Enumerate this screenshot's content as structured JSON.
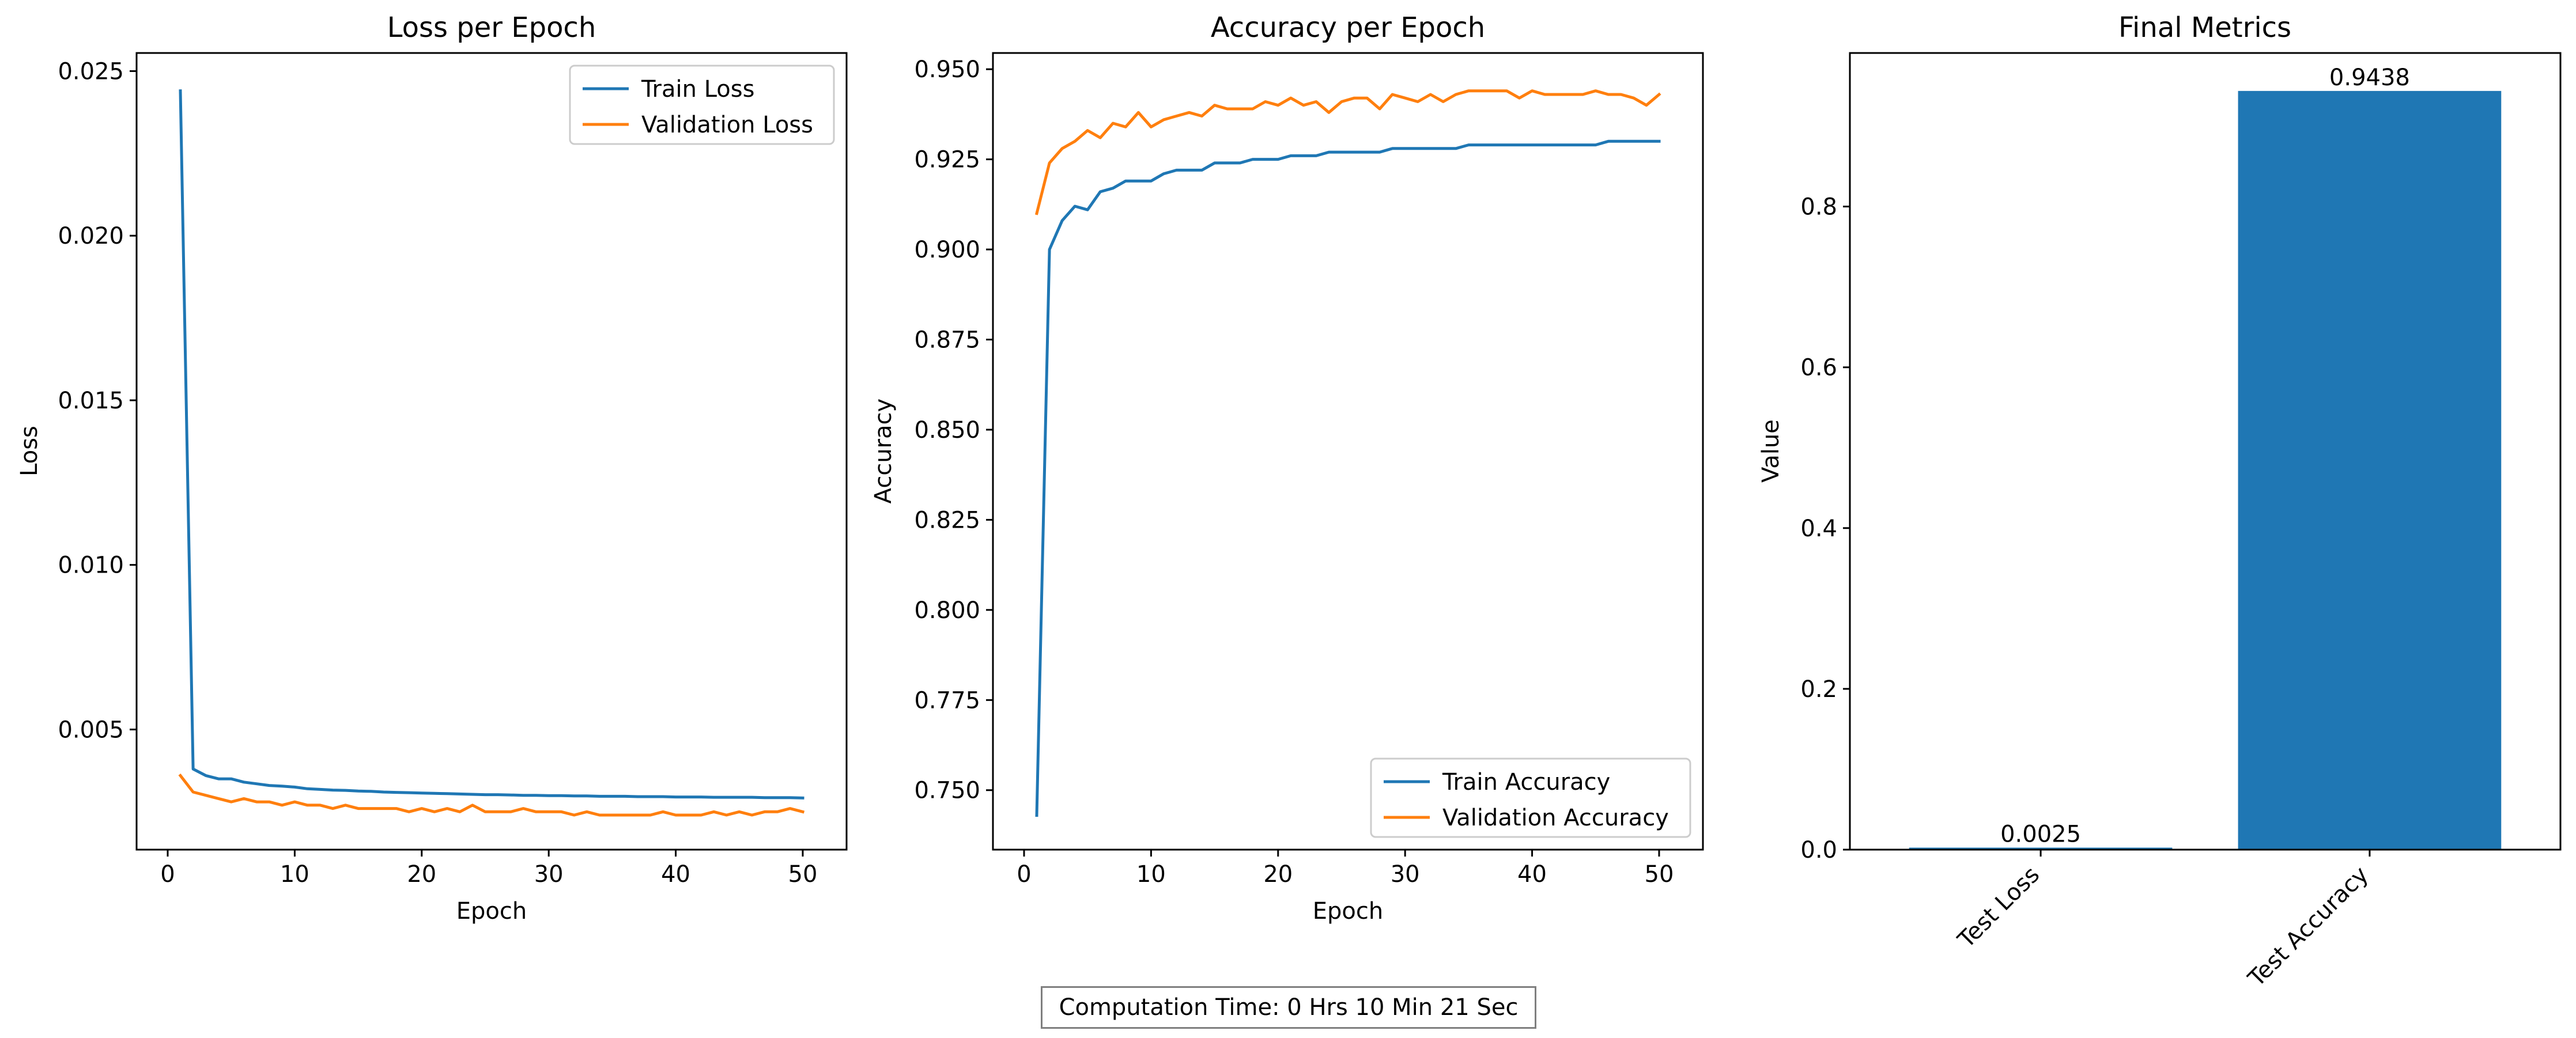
{
  "charts": [
    {
      "type": "line",
      "title": "Loss per Epoch",
      "xlabel": "Epoch",
      "ylabel": "Loss",
      "xticks": [
        0,
        10,
        20,
        30,
        40,
        50
      ],
      "yticks": [
        0.005,
        0.01,
        0.015,
        0.02,
        0.025
      ],
      "ytick_labels": [
        "0.005",
        "0.010",
        "0.015",
        "0.020",
        "0.025"
      ],
      "legend": {
        "placement": "top-right",
        "entries": [
          "Train Loss",
          "Validation Loss"
        ]
      }
    },
    {
      "type": "line",
      "title": "Accuracy per Epoch",
      "xlabel": "Epoch",
      "ylabel": "Accuracy",
      "xticks": [
        0,
        10,
        20,
        30,
        40,
        50
      ],
      "yticks": [
        0.75,
        0.775,
        0.8,
        0.825,
        0.85,
        0.875,
        0.9,
        0.925,
        0.95
      ],
      "ytick_labels": [
        "0.750",
        "0.775",
        "0.800",
        "0.825",
        "0.850",
        "0.875",
        "0.900",
        "0.925",
        "0.950"
      ],
      "legend": {
        "placement": "bottom-right",
        "entries": [
          "Train Accuracy",
          "Validation Accuracy"
        ]
      }
    },
    {
      "type": "bar",
      "title": "Final Metrics",
      "ylabel": "Value",
      "yticks": [
        0.0,
        0.2,
        0.4,
        0.6,
        0.8
      ],
      "ytick_labels": [
        "0.0",
        "0.2",
        "0.4",
        "0.6",
        "0.8"
      ],
      "value_labels": [
        "0.0025",
        "0.9438"
      ]
    }
  ],
  "colors": {
    "blue": "#1f77b4",
    "orange": "#ff7f0e"
  },
  "footer": {
    "text": "Computation Time: 0 Hrs 10 Min 21 Sec"
  },
  "chart_data": [
    {
      "type": "line",
      "title": "Loss per Epoch",
      "xlabel": "Epoch",
      "ylabel": "Loss",
      "xlim": [
        -2.45,
        53.45
      ],
      "ylim": [
        0.00135,
        0.02555
      ],
      "grid": false,
      "legend": "top-right",
      "x": [
        1,
        2,
        3,
        4,
        5,
        6,
        7,
        8,
        9,
        10,
        11,
        12,
        13,
        14,
        15,
        16,
        17,
        18,
        19,
        20,
        21,
        22,
        23,
        24,
        25,
        26,
        27,
        28,
        29,
        30,
        31,
        32,
        33,
        34,
        35,
        36,
        37,
        38,
        39,
        40,
        41,
        42,
        43,
        44,
        45,
        46,
        47,
        48,
        49,
        50
      ],
      "series": [
        {
          "name": "Train Loss",
          "color": "#1f77b4",
          "values": [
            0.0244,
            0.0038,
            0.0036,
            0.0035,
            0.0035,
            0.0034,
            0.00335,
            0.0033,
            0.00328,
            0.00325,
            0.0032,
            0.00318,
            0.00316,
            0.00315,
            0.00313,
            0.00312,
            0.0031,
            0.00309,
            0.00308,
            0.00307,
            0.00306,
            0.00305,
            0.00304,
            0.00303,
            0.00302,
            0.00302,
            0.00301,
            0.003,
            0.003,
            0.00299,
            0.00299,
            0.00298,
            0.00298,
            0.00297,
            0.00297,
            0.00297,
            0.00296,
            0.00296,
            0.00296,
            0.00295,
            0.00295,
            0.00295,
            0.00294,
            0.00294,
            0.00294,
            0.00294,
            0.00293,
            0.00293,
            0.00293,
            0.00292
          ]
        },
        {
          "name": "Validation Loss",
          "color": "#ff7f0e",
          "values": [
            0.0036,
            0.0031,
            0.003,
            0.0029,
            0.0028,
            0.0029,
            0.0028,
            0.0028,
            0.0027,
            0.0028,
            0.0027,
            0.0027,
            0.0026,
            0.0027,
            0.0026,
            0.0026,
            0.0026,
            0.0026,
            0.0025,
            0.0026,
            0.0025,
            0.0026,
            0.0025,
            0.0027,
            0.0025,
            0.0025,
            0.0025,
            0.0026,
            0.0025,
            0.0025,
            0.0025,
            0.0024,
            0.0025,
            0.0024,
            0.0024,
            0.0024,
            0.0024,
            0.0024,
            0.0025,
            0.0024,
            0.0024,
            0.0024,
            0.0025,
            0.0024,
            0.0025,
            0.0024,
            0.0025,
            0.0025,
            0.0026,
            0.0025
          ]
        }
      ]
    },
    {
      "type": "line",
      "title": "Accuracy per Epoch",
      "xlabel": "Epoch",
      "ylabel": "Accuracy",
      "xlim": [
        -2.45,
        53.45
      ],
      "ylim": [
        0.7335,
        0.9545
      ],
      "grid": false,
      "legend": "bottom-right",
      "x": [
        1,
        2,
        3,
        4,
        5,
        6,
        7,
        8,
        9,
        10,
        11,
        12,
        13,
        14,
        15,
        16,
        17,
        18,
        19,
        20,
        21,
        22,
        23,
        24,
        25,
        26,
        27,
        28,
        29,
        30,
        31,
        32,
        33,
        34,
        35,
        36,
        37,
        38,
        39,
        40,
        41,
        42,
        43,
        44,
        45,
        46,
        47,
        48,
        49,
        50
      ],
      "series": [
        {
          "name": "Train Accuracy",
          "color": "#1f77b4",
          "values": [
            0.743,
            0.9,
            0.908,
            0.912,
            0.911,
            0.916,
            0.917,
            0.919,
            0.919,
            0.919,
            0.921,
            0.922,
            0.922,
            0.922,
            0.924,
            0.924,
            0.924,
            0.925,
            0.925,
            0.925,
            0.926,
            0.926,
            0.926,
            0.927,
            0.927,
            0.927,
            0.927,
            0.927,
            0.928,
            0.928,
            0.928,
            0.928,
            0.928,
            0.928,
            0.929,
            0.929,
            0.929,
            0.929,
            0.929,
            0.929,
            0.929,
            0.929,
            0.929,
            0.929,
            0.929,
            0.93,
            0.93,
            0.93,
            0.93,
            0.93
          ]
        },
        {
          "name": "Validation Accuracy",
          "color": "#ff7f0e",
          "values": [
            0.91,
            0.924,
            0.928,
            0.93,
            0.933,
            0.931,
            0.935,
            0.934,
            0.938,
            0.934,
            0.936,
            0.937,
            0.938,
            0.937,
            0.94,
            0.939,
            0.939,
            0.939,
            0.941,
            0.94,
            0.942,
            0.94,
            0.941,
            0.938,
            0.941,
            0.942,
            0.942,
            0.939,
            0.943,
            0.942,
            0.941,
            0.943,
            0.941,
            0.943,
            0.944,
            0.944,
            0.944,
            0.944,
            0.942,
            0.944,
            0.943,
            0.943,
            0.943,
            0.943,
            0.944,
            0.943,
            0.943,
            0.942,
            0.94,
            0.943
          ]
        }
      ]
    },
    {
      "type": "bar",
      "title": "Final Metrics",
      "xlabel": "",
      "ylabel": "Value",
      "ylim": [
        0,
        0.991
      ],
      "grid": false,
      "categories": [
        "Test Loss",
        "Test Accuracy"
      ],
      "values": [
        0.0025,
        0.9438
      ],
      "data_labels": [
        "0.0025",
        "0.9438"
      ],
      "color": "#1f77b4"
    }
  ]
}
